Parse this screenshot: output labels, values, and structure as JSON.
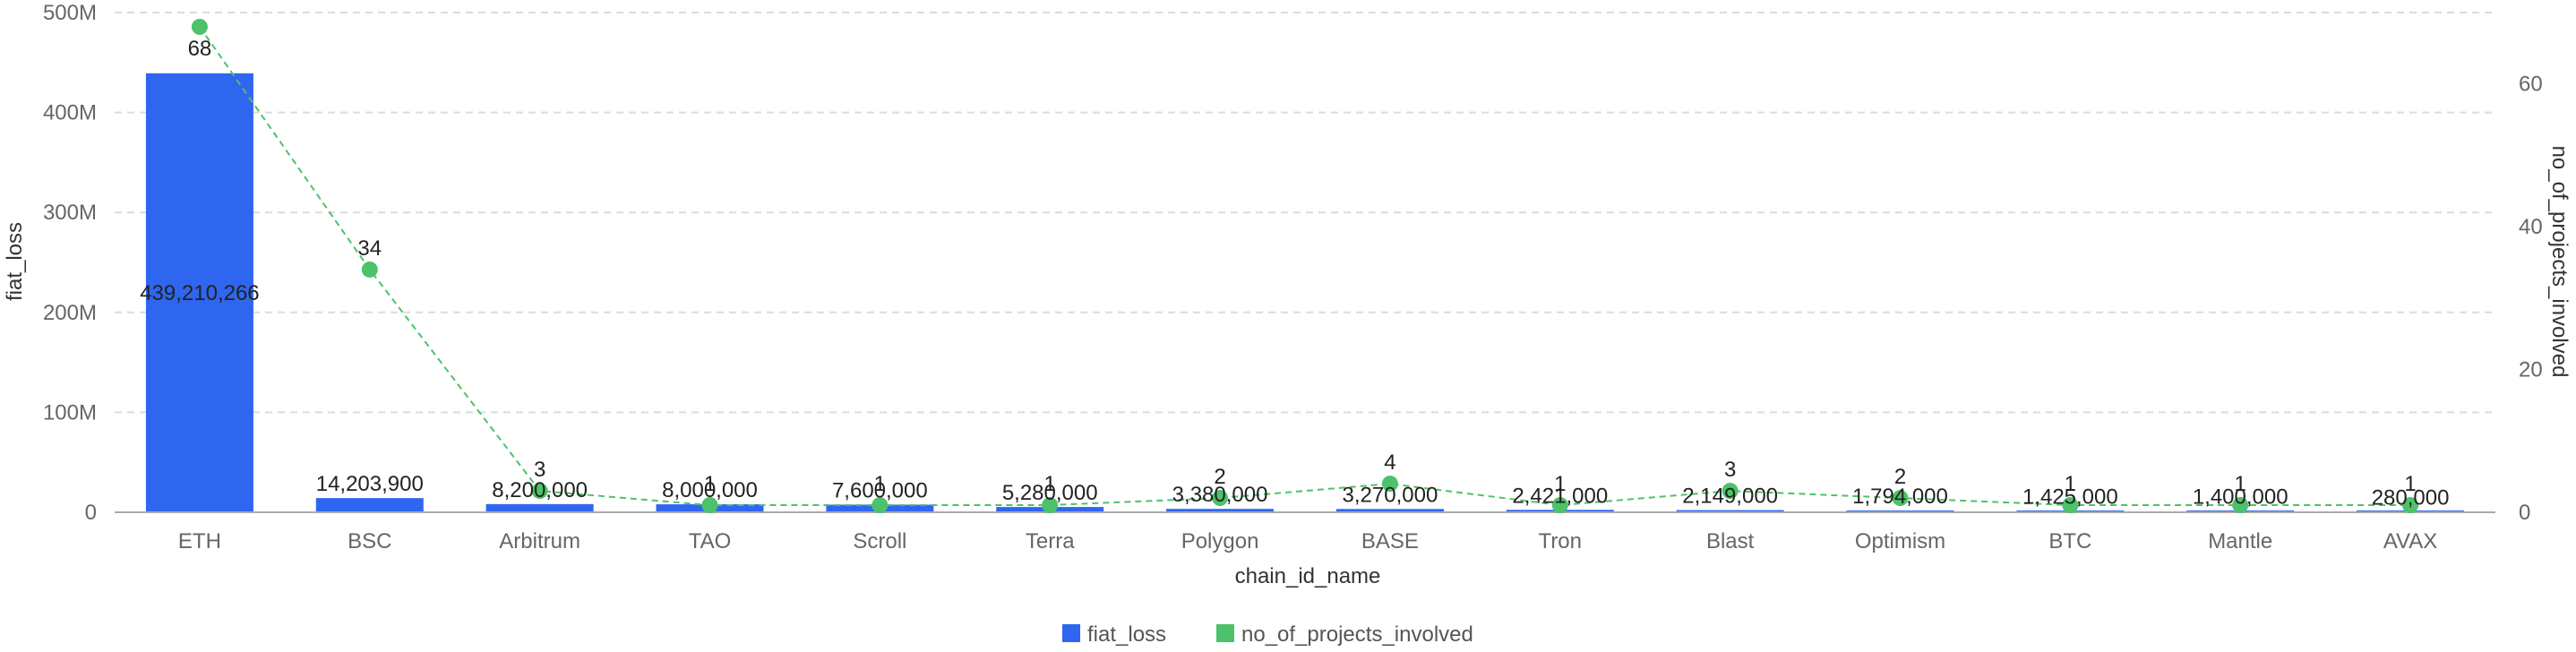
{
  "chart_data": {
    "type": "bar",
    "categories": [
      "ETH",
      "BSC",
      "Arbitrum",
      "TAO",
      "Scroll",
      "Terra",
      "Polygon",
      "BASE",
      "Tron",
      "Blast",
      "Optimism",
      "BTC",
      "Mantle",
      "AVAX"
    ],
    "series": [
      {
        "name": "fiat_loss",
        "type": "bar",
        "axis": "left",
        "color": "#2f66f0",
        "values": [
          439210266,
          14203900,
          8200000,
          8000000,
          7600000,
          5280000,
          3380000,
          3270000,
          2421000,
          2149000,
          1794000,
          1425000,
          1400000,
          280000
        ],
        "labels": [
          "439,210,266",
          "14,203,900",
          "8,200,000",
          "8,000,000",
          "7,600,000",
          "5,280,000",
          "3,380,000",
          "3,270,000",
          "2,421,000",
          "2,149,000",
          "1,794,000",
          "1,425,000",
          "1,400,000",
          "280,000"
        ]
      },
      {
        "name": "no_of_projects_involved",
        "type": "line",
        "axis": "right",
        "color": "#4cc26a",
        "line_style": "dashed",
        "values": [
          68,
          34,
          3,
          1,
          1,
          1,
          2,
          4,
          1,
          3,
          2,
          1,
          1,
          1
        ],
        "labels": [
          "68",
          "34",
          "3",
          "1",
          "1",
          "1",
          "2",
          "4",
          "1",
          "3",
          "2",
          "1",
          "1",
          "1"
        ]
      }
    ],
    "xlabel": "chain_id_name",
    "ylabel_left": "fiat_loss",
    "ylabel_right": "no_of_projects_involved",
    "ylim_left": [
      0,
      500000000
    ],
    "ylim_right": [
      0,
      70
    ],
    "y_ticks_left": [
      {
        "value": 0,
        "label": "0"
      },
      {
        "value": 100000000,
        "label": "100M"
      },
      {
        "value": 200000000,
        "label": "200M"
      },
      {
        "value": 300000000,
        "label": "300M"
      },
      {
        "value": 400000000,
        "label": "400M"
      },
      {
        "value": 500000000,
        "label": "500M"
      }
    ],
    "y_ticks_right": [
      {
        "value": 0,
        "label": "0"
      },
      {
        "value": 20,
        "label": "20"
      },
      {
        "value": 40,
        "label": "40"
      },
      {
        "value": 60,
        "label": "60"
      }
    ],
    "grid": true,
    "legend": {
      "position": "bottom-center",
      "items": [
        {
          "label": "fiat_loss",
          "color": "#2f66f0"
        },
        {
          "label": "no_of_projects_involved",
          "color": "#4cc26a"
        }
      ]
    }
  }
}
